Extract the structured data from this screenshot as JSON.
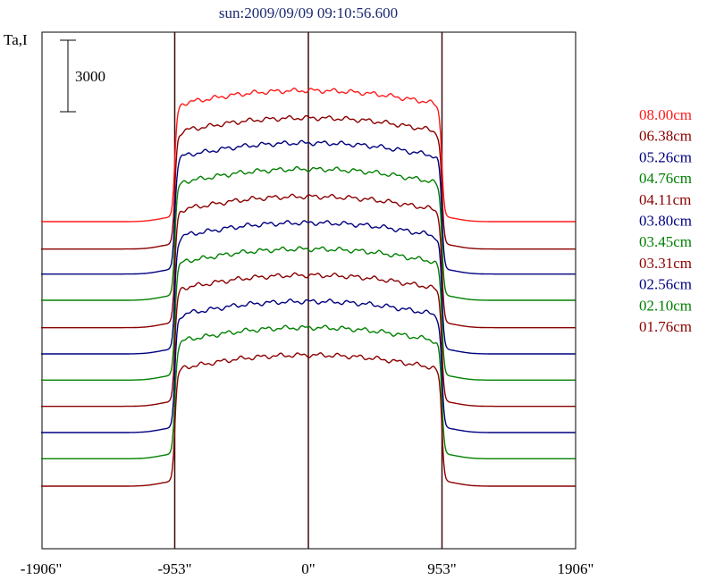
{
  "chart_data": {
    "type": "line",
    "title": "sun:2009/09/09 09:10:56.600",
    "ylabel": "Ta,I",
    "xlim": [
      -1906,
      1906
    ],
    "x_ticks": [
      {
        "value": -1906,
        "label": "-1906\""
      },
      {
        "value": -953,
        "label": "-953\""
      },
      {
        "value": 0,
        "label": "0\""
      },
      {
        "value": 953,
        "label": "953\""
      },
      {
        "value": 1906,
        "label": "1906\""
      }
    ],
    "vertical_lines": [
      -953,
      0,
      953
    ],
    "scale_bar": {
      "value": 3000,
      "label": "3000"
    },
    "series": [
      {
        "name": "08.00cm",
        "color": "#ff1a1a",
        "baseline": 0,
        "amplitude": 5500
      },
      {
        "name": "06.38cm",
        "color": "#8b0000",
        "baseline": -1150,
        "amplitude": 5500
      },
      {
        "name": "05.26cm",
        "color": "#000080",
        "baseline": -2200,
        "amplitude": 5500
      },
      {
        "name": "04.76cm",
        "color": "#008000",
        "baseline": -3300,
        "amplitude": 5500
      },
      {
        "name": "04.11cm",
        "color": "#8b0000",
        "baseline": -4450,
        "amplitude": 5500
      },
      {
        "name": "03.80cm",
        "color": "#000080",
        "baseline": -5550,
        "amplitude": 5500
      },
      {
        "name": "03.45cm",
        "color": "#008000",
        "baseline": -6650,
        "amplitude": 5500
      },
      {
        "name": "03.31cm",
        "color": "#8b0000",
        "baseline": -7750,
        "amplitude": 5500
      },
      {
        "name": "02.56cm",
        "color": "#000080",
        "baseline": -8850,
        "amplitude": 5500
      },
      {
        "name": "02.10cm",
        "color": "#008000",
        "baseline": -9950,
        "amplitude": 5500
      },
      {
        "name": "01.76cm",
        "color": "#8b0000",
        "baseline": -11100,
        "amplitude": 5500
      }
    ]
  }
}
